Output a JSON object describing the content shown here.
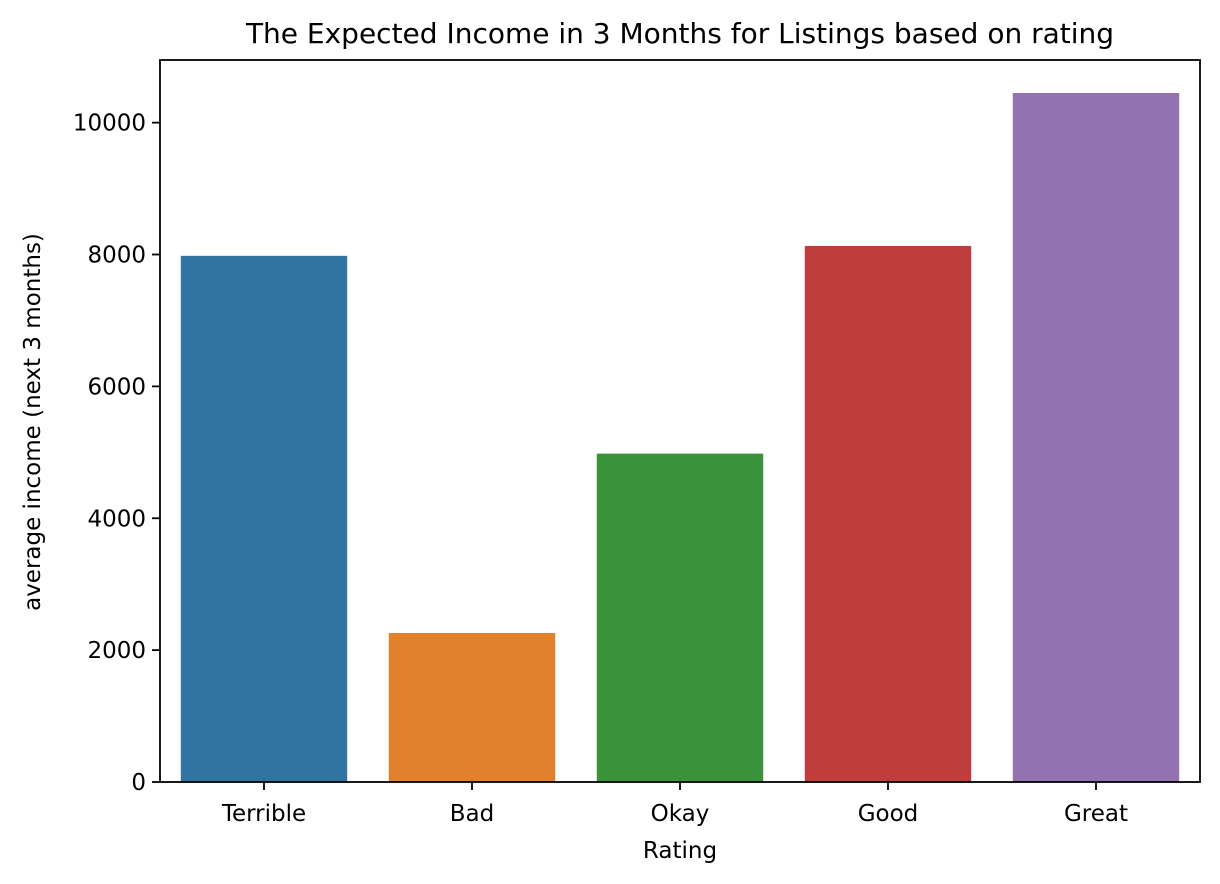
{
  "chart_data": {
    "type": "bar",
    "title": "The Expected Income in 3 Months for Listings based on rating",
    "xlabel": "Rating",
    "ylabel": "average income (next 3 months)",
    "categories": [
      "Terrible",
      "Bad",
      "Okay",
      "Good",
      "Great"
    ],
    "values": [
      7980,
      2260,
      4980,
      8130,
      10450
    ],
    "colors": [
      "#3274a1",
      "#e1812c",
      "#3a923a",
      "#c03d3e",
      "#9372b2"
    ],
    "ylim": [
      0,
      10950
    ],
    "yticks": [
      0,
      2000,
      4000,
      6000,
      8000,
      10000
    ],
    "grid": false
  }
}
